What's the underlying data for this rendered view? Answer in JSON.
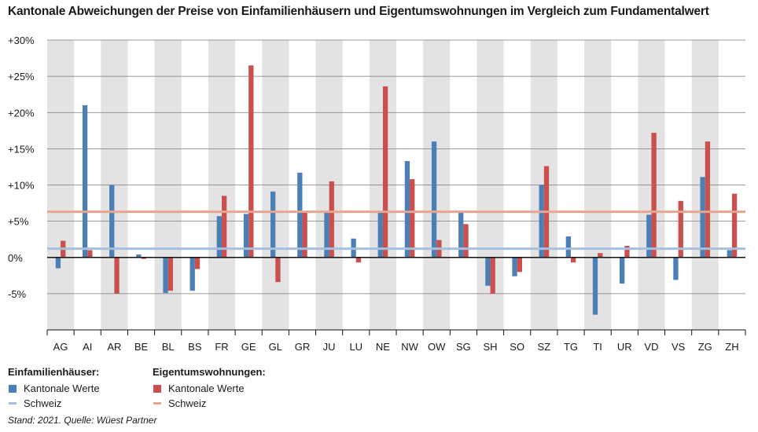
{
  "chart_data": {
    "type": "bar",
    "title": "Kantonale Abweichungen der Preise von Einfamilienhäusern und Eigentumswohnungen im Vergleich zum Fundamentalwert",
    "categories": [
      "AG",
      "AI",
      "AR",
      "BE",
      "BL",
      "BS",
      "FR",
      "GE",
      "GL",
      "GR",
      "JU",
      "LU",
      "NE",
      "NW",
      "OW",
      "SG",
      "SH",
      "SO",
      "SZ",
      "TG",
      "TI",
      "UR",
      "VD",
      "VS",
      "ZG",
      "ZH"
    ],
    "series": [
      {
        "name": "Einfamilienhäuser: Kantonale Werte",
        "color": "#4a7fb8",
        "values": [
          -1.5,
          21.0,
          10.0,
          0.4,
          -4.9,
          -4.6,
          5.7,
          6.0,
          9.1,
          11.7,
          6.3,
          2.6,
          6.3,
          13.3,
          16.0,
          6.3,
          -3.9,
          -2.6,
          10.0,
          2.9,
          -7.9,
          -3.6,
          5.9,
          -3.1,
          11.1,
          1.0
        ]
      },
      {
        "name": "Eigentumswohnungen: Kantonale Werte",
        "color": "#c9504c",
        "values": [
          2.3,
          1.0,
          -5.0,
          -0.2,
          -4.6,
          -1.6,
          8.5,
          26.5,
          -3.4,
          6.3,
          10.5,
          -0.7,
          23.6,
          10.8,
          2.4,
          4.6,
          -5.0,
          -2.0,
          12.6,
          -0.7,
          0.6,
          1.6,
          17.2,
          7.8,
          16.0,
          8.8
        ]
      }
    ],
    "reference_lines": [
      {
        "name": "Einfamilienhäuser: Schweiz",
        "value": 1.2,
        "color": "#a7c0dd"
      },
      {
        "name": "Eigentumswohnungen: Schweiz",
        "value": 6.3,
        "color": "#e8a58f"
      }
    ],
    "yticks": [
      30,
      25,
      20,
      15,
      10,
      5,
      0,
      -5
    ],
    "ytick_labels": [
      "+30%",
      "+25%",
      "+20%",
      "+15%",
      "+10%",
      "+5%",
      "0%",
      "-5%"
    ],
    "ylim": [
      -10,
      30
    ],
    "xlabel": "",
    "ylabel": ""
  },
  "legend": {
    "group1_title": "Einfamilienhäuser:",
    "group1_bar": "Kantonale Werte",
    "group1_line": "Schweiz",
    "group2_title": "Eigentumswohnungen:",
    "group2_bar": "Kantonale Werte",
    "group2_line": "Schweiz",
    "color_bar1": "#4a7fb8",
    "color_line1": "#a7c0dd",
    "color_bar2": "#c9504c",
    "color_line2": "#e8a58f"
  },
  "source": "Stand: 2021. Quelle: Wüest Partner"
}
